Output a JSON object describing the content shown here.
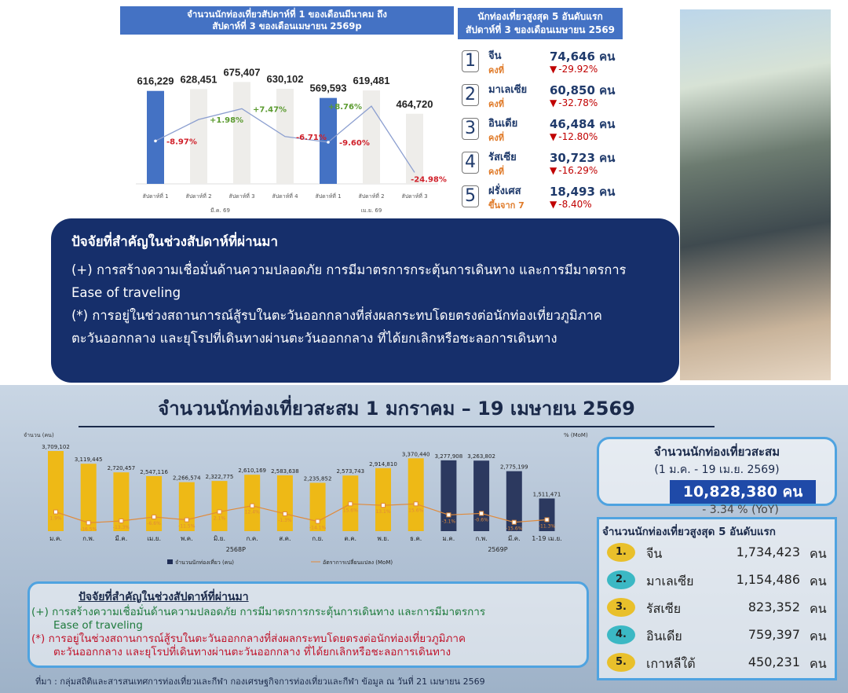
{
  "weekly_chart": {
    "title_line1": "จำนวนนักท่องเที่ยวสัปดาห์ที่ 1 ของเดือนมีนาคม ถึง",
    "title_line2": "สัปดาห์ที่ 3 ของเดือนเมษายน 2569p",
    "chart_data": {
      "type": "bar",
      "categories": [
        "สัปดาห์ที่ 1",
        "สัปดาห์ที่ 2",
        "สัปดาห์ที่ 3",
        "สัปดาห์ที่ 4",
        "สัปดาห์ที่ 1",
        "สัปดาห์ที่ 2",
        "สัปดาห์ที่ 3"
      ],
      "groups": [
        {
          "label": "มี.ค. 69",
          "count": 4
        },
        {
          "label": "เม.ย. 69",
          "count": 3
        }
      ],
      "values": [
        616229,
        628451,
        675407,
        630102,
        569593,
        619481,
        464720
      ],
      "value_labels": [
        "616,229",
        "628,451",
        "675,407",
        "630,102",
        "569,593",
        "619,481",
        "464,720"
      ],
      "highlight": [
        true,
        false,
        false,
        false,
        true,
        false,
        false
      ],
      "change_pct": [
        -8.97,
        1.98,
        7.47,
        -6.71,
        -9.6,
        8.76,
        -24.98
      ],
      "change_labels": [
        "-8.97%",
        "+1.98%",
        "+7.47%",
        "-6.71%",
        "-9.60%",
        "+8.76%",
        "-24.98%"
      ],
      "colors": {
        "highlight": "#4472c4",
        "bar": "#eeedea",
        "line": "#8c9fd0",
        "pos": "#5a9a2e",
        "neg": "#d0202a"
      }
    }
  },
  "top5_week": {
    "title_line1": "นักท่องเที่ยวสูงสุด 5 อันดับแรก",
    "title_line2": "สัปดาห์ที่ 3 ของเดือนเมษายน 2569",
    "items": [
      {
        "rank": "1",
        "country": "จีน",
        "status": "คงที่",
        "value": "74,646 คน",
        "change": "-29.92%"
      },
      {
        "rank": "2",
        "country": "มาเลเซีย",
        "status": "คงที่",
        "value": "60,850 คน",
        "change": "-32.78%"
      },
      {
        "rank": "3",
        "country": "อินเดีย",
        "status": "คงที่",
        "value": "46,484 คน",
        "change": "-12.80%"
      },
      {
        "rank": "4",
        "country": "รัสเซีย",
        "status": "คงที่",
        "value": "30,723 คน",
        "change": "-16.29%"
      },
      {
        "rank": "5",
        "country": "ฝรั่งเศส",
        "status": "ขึ้นจาก 7",
        "value": "18,493 คน",
        "change": "-8.40%"
      }
    ]
  },
  "factors_top": {
    "heading": "ปัจจัยที่สำคัญในช่วงสัปดาห์ที่ผ่านมา",
    "plus": "(+) การสร้างความเชื่อมั่นด้านความปลอดภัย การมีมาตรการกระตุ้นการเดินทาง และการมีมาตรการ Ease of traveling",
    "star": "(*) การอยู่ในช่วงสถานการณ์สู้รบในตะวันออกกลางที่ส่งผลกระทบโดยตรงต่อนักท่องเที่ยวภูมิภาคตะวันออกกลาง และยุโรปที่เดินทางผ่านตะวันออกกลาง ที่ได้ยกเลิกหรือชะลอการเดินทาง"
  },
  "bottom": {
    "title": "จำนวนนักท่องเที่ยวสะสม 1 มกราคม – 19 เมษายน 2569",
    "monthly_chart": {
      "type": "bar",
      "ylabel": "จำนวน (คน)",
      "y2label": "% (MoM)",
      "ylim": [
        0,
        4000000
      ],
      "categories": [
        "ม.ค.",
        "ก.พ.",
        "มี.ค.",
        "เม.ย.",
        "พ.ค.",
        "มิ.ย.",
        "ก.ค.",
        "ส.ค.",
        "ก.ย.",
        "ต.ค.",
        "พ.ย.",
        "ธ.ค.",
        "ม.ค.",
        "ก.พ.",
        "มี.ค.",
        "1-19 เม.ย."
      ],
      "years": [
        {
          "label": "2568P",
          "count": 12
        },
        {
          "label": "2569P",
          "count": 4
        }
      ],
      "values": [
        3709102,
        3119445,
        2720457,
        2547116,
        2266574,
        2322775,
        2610169,
        2583638,
        2235852,
        2573743,
        2914810,
        3370440,
        3277908,
        3263802,
        2775199,
        1511471
      ],
      "value_labels": [
        "3,709,102",
        "3,119,445",
        "2,720,457",
        "2,547,116",
        "2,266,574",
        "2,322,775",
        "2,610,169",
        "2,583,638",
        "2,235,852",
        "2,573,743",
        "2,914,810",
        "3,370,440",
        "3,277,908",
        "3,263,802",
        "2,775,199",
        "1,511,471"
      ],
      "mom_pct": [
        1.9,
        -16.5,
        -13.3,
        -6.6,
        -11.5,
        2.1,
        12.4,
        -1.3,
        -14.1,
        15.6,
        13.1,
        15.6,
        -3.1,
        -0.6,
        -15.6,
        -11.3
      ],
      "mom_range": [
        -20,
        20
      ],
      "legend": [
        "จำนวนนักท่องเที่ยว (คน)",
        "อัตราการเปลี่ยนแปลง (MoM)"
      ],
      "legend_placement": "bottom",
      "colors": {
        "y2568": "#f2b705",
        "y2569": "#1f2d55",
        "line": "#e08a3a"
      }
    },
    "cumulative": {
      "title": "จำนวนนักท่องเที่ยวสะสม",
      "period": "(1 ม.ค. - 19 เม.ย. 2569)",
      "value": "10,828,380 คน",
      "yoy": "- 3.34 % (YoY)"
    },
    "top5": {
      "title": "จำนวนนักท่องเที่ยวสูงสุด 5 อันดับแรก",
      "unit": "คน",
      "items": [
        {
          "rank": "1.",
          "country": "จีน",
          "value": "1,734,423",
          "medal": "#e9c02b"
        },
        {
          "rank": "2.",
          "country": "มาเลเซีย",
          "value": "1,154,486",
          "medal": "#3bb8c4"
        },
        {
          "rank": "3.",
          "country": "รัสเซีย",
          "value": "823,352",
          "medal": "#e9c02b"
        },
        {
          "rank": "4.",
          "country": "อินเดีย",
          "value": "759,397",
          "medal": "#3bb8c4"
        },
        {
          "rank": "5.",
          "country": "เกาหลีใต้",
          "value": "450,231",
          "medal": "#e9c02b"
        }
      ]
    },
    "factors": {
      "heading": "ปัจจัยที่สำคัญในช่วงสัปดาห์ที่ผ่านมา",
      "plus_1": "(+) การสร้างความเชื่อมั่นด้านความปลอดภัย การมีมาตรการกระตุ้นการเดินทาง และการมีมาตรการ",
      "plus_2": "Ease of traveling",
      "star_1": "(*) การอยู่ในช่วงสถานการณ์สู้รบในตะวันออกกลางที่ส่งผลกระทบโดยตรงต่อนักท่องเที่ยวภูมิภาค",
      "star_2": "ตะวันออกกลาง และยุโรปที่เดินทางผ่านตะวันออกกลาง ที่ได้ยกเลิกหรือชะลอการเดินทาง"
    },
    "source": "ที่มา : กลุ่มสถิติและสารสนเทศการท่องเที่ยวและกีฬา กองเศรษฐกิจการท่องเที่ยวและกีฬา ข้อมูล ณ วันที่ 21 เมษายน 2569"
  }
}
